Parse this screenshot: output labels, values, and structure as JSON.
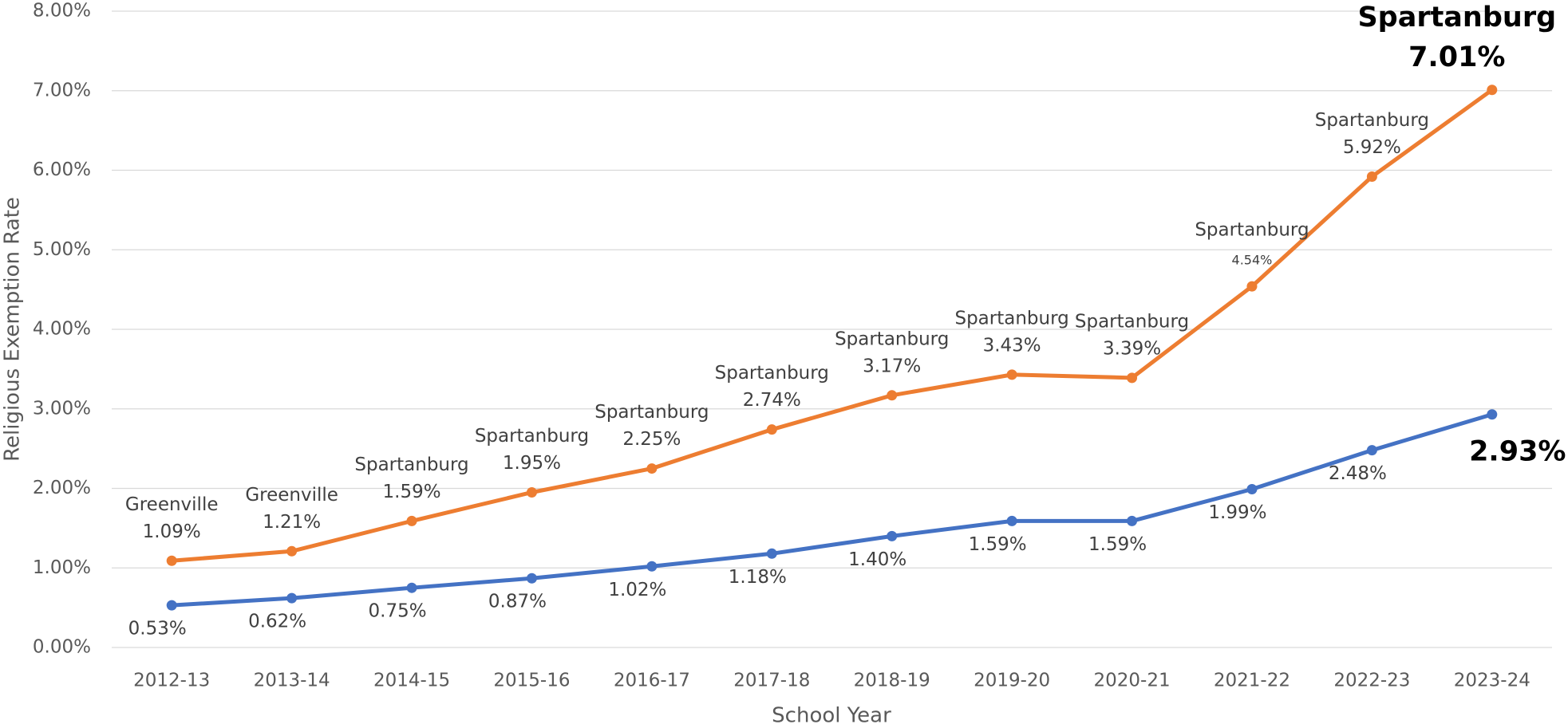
{
  "chart_data": {
    "type": "line",
    "x_label": "School Year",
    "y_label": "Religious Exemption Rate",
    "categories": [
      "2012-13",
      "2013-14",
      "2014-15",
      "2015-16",
      "2016-17",
      "2017-18",
      "2018-19",
      "2019-20",
      "2020-21",
      "2021-22",
      "2022-23",
      "2023-24"
    ],
    "series": [
      {
        "color": "#ed7d31",
        "values": [
          1.09,
          1.21,
          1.59,
          1.95,
          2.25,
          2.74,
          3.17,
          3.43,
          3.39,
          4.54,
          5.92,
          7.01
        ],
        "value_labels": [
          "1.09%",
          "1.21%",
          "1.59%",
          "1.95%",
          "2.25%",
          "2.74%",
          "3.17%",
          "3.43%",
          "3.39%",
          "4.54%",
          "5.92%",
          "7.01%"
        ],
        "point_labels": [
          "Greenville",
          "Greenville",
          "Spartanburg",
          "Spartanburg",
          "Spartanburg",
          "Spartanburg",
          "Spartanburg",
          "Spartanburg",
          "Spartanburg",
          "Spartanburg",
          "Spartanburg",
          "Spartanburg"
        ]
      },
      {
        "color": "#4472c4",
        "values": [
          0.53,
          0.62,
          0.75,
          0.87,
          1.02,
          1.18,
          1.4,
          1.59,
          1.59,
          1.99,
          2.48,
          2.93
        ],
        "value_labels": [
          "0.53%",
          "0.62%",
          "0.75%",
          "0.87%",
          "1.02%",
          "1.18%",
          "1.40%",
          "1.59%",
          "1.59%",
          "1.99%",
          "2.48%",
          "2.93%"
        ]
      }
    ],
    "ylim": [
      0,
      8
    ],
    "yticks": [
      {
        "value": 0,
        "label": "0.00%"
      },
      {
        "value": 1,
        "label": "1.00%"
      },
      {
        "value": 2,
        "label": "2.00%"
      },
      {
        "value": 3,
        "label": "3.00%"
      },
      {
        "value": 4,
        "label": "4.00%"
      },
      {
        "value": 5,
        "label": "5.00%"
      },
      {
        "value": 6,
        "label": "6.00%"
      },
      {
        "value": 7,
        "label": "7.00%"
      },
      {
        "value": 8,
        "label": "8.00%"
      }
    ],
    "grid": true
  }
}
